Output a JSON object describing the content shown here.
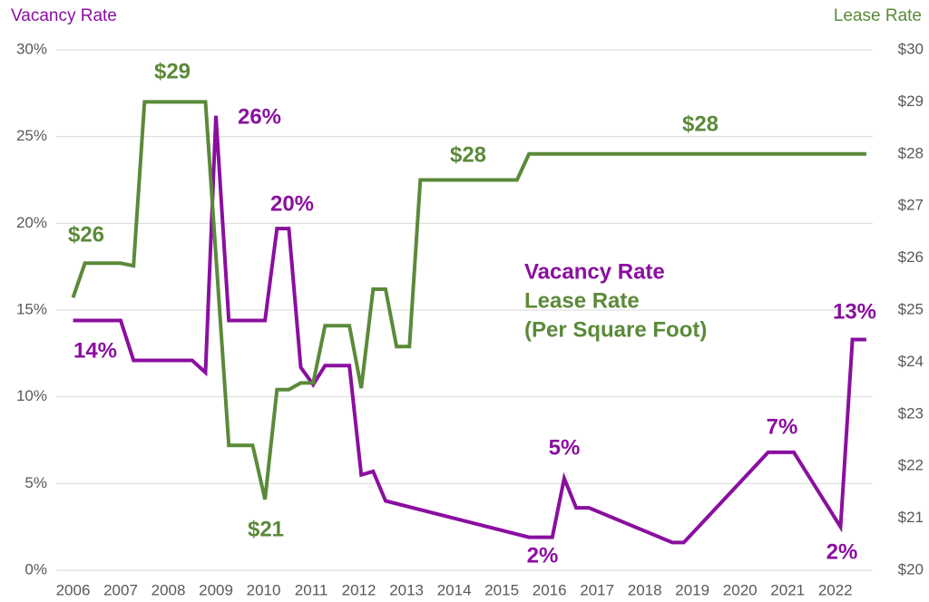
{
  "chart_data": {
    "type": "line",
    "ylabel": "Vacancy Rate",
    "y2label": "Lease Rate",
    "legend_note": "(Per Square Foot)",
    "grid": true,
    "xlim": [
      2005.8,
      2022.9
    ],
    "xticks": [
      2006,
      2007,
      2008,
      2009,
      2010,
      2011,
      2012,
      2013,
      2014,
      2015,
      2016,
      2017,
      2018,
      2019,
      2020,
      2021,
      2022
    ],
    "ylim": [
      0,
      30
    ],
    "yticks": [
      {
        "value": 0,
        "label": "0%"
      },
      {
        "value": 5,
        "label": "5%"
      },
      {
        "value": 10,
        "label": "10%"
      },
      {
        "value": 15,
        "label": "15%"
      },
      {
        "value": 20,
        "label": "20%"
      },
      {
        "value": 25,
        "label": "25%"
      },
      {
        "value": 30,
        "label": "30%"
      }
    ],
    "y2lim": [
      20,
      30
    ],
    "y2ticks": [
      {
        "value": 20,
        "label": "$20"
      },
      {
        "value": 21,
        "label": "$21"
      },
      {
        "value": 22,
        "label": "$22"
      },
      {
        "value": 23,
        "label": "$23"
      },
      {
        "value": 24,
        "label": "$24"
      },
      {
        "value": 25,
        "label": "$25"
      },
      {
        "value": 26,
        "label": "$26"
      },
      {
        "value": 27,
        "label": "$27"
      },
      {
        "value": 28,
        "label": "$28"
      },
      {
        "value": 29,
        "label": "$29"
      },
      {
        "value": 30,
        "label": "$30"
      }
    ],
    "series": [
      {
        "name": "Vacancy Rate",
        "color": "#8a0f9f",
        "axis": "y",
        "x": [
          2006,
          2007,
          2007.27,
          2008.5,
          2008.78,
          2009,
          2009.27,
          2010.03,
          2010.28,
          2010.53,
          2010.78,
          2011.04,
          2011.29,
          2011.8,
          2012.05,
          2012.3,
          2012.56,
          2015.57,
          2016.06,
          2016.31,
          2016.56,
          2016.83,
          2018.58,
          2018.82,
          2020.59,
          2021.13,
          2022.11,
          2022.36,
          2022.65
        ],
        "values": [
          14.4,
          14.4,
          12.1,
          12.1,
          11.4,
          26.2,
          14.4,
          14.4,
          19.7,
          19.7,
          11.7,
          10.7,
          11.8,
          11.8,
          5.5,
          5.7,
          4.0,
          1.9,
          1.9,
          5.3,
          3.6,
          3.6,
          1.6,
          1.6,
          6.8,
          6.8,
          2.5,
          13.3,
          13.3
        ]
      },
      {
        "name": "Lease Rate",
        "color": "#5b8a3a",
        "axis": "y2",
        "x": [
          2006,
          2006.25,
          2007,
          2007.27,
          2007.5,
          2008.78,
          2009.27,
          2009.77,
          2010.03,
          2010.28,
          2010.53,
          2010.78,
          2011.04,
          2011.29,
          2011.8,
          2012.05,
          2012.3,
          2012.56,
          2012.79,
          2013.06,
          2013.29,
          2015.32,
          2015.57,
          2022.65
        ],
        "values": [
          25.24,
          25.9,
          25.9,
          25.85,
          29.0,
          29.0,
          22.4,
          22.4,
          21.36,
          23.47,
          23.47,
          23.6,
          23.6,
          24.7,
          24.7,
          23.5,
          25.4,
          25.4,
          24.3,
          24.3,
          27.5,
          27.5,
          28.0,
          28.0
        ]
      }
    ],
    "annotations": [
      {
        "text": "$29",
        "color": "#5b8a3a"
      },
      {
        "text": "26%",
        "color": "#8a0f9f"
      },
      {
        "text": "20%",
        "color": "#8a0f9f"
      },
      {
        "text": "$26",
        "color": "#5b8a3a"
      },
      {
        "text": "14%",
        "color": "#8a0f9f"
      },
      {
        "text": "$21",
        "color": "#5b8a3a"
      },
      {
        "text": "$28",
        "color": "#5b8a3a"
      },
      {
        "text": "$28",
        "color": "#5b8a3a"
      },
      {
        "text": "5%",
        "color": "#8a0f9f"
      },
      {
        "text": "7%",
        "color": "#8a0f9f"
      },
      {
        "text": "2%",
        "color": "#8a0f9f"
      },
      {
        "text": "2%",
        "color": "#8a0f9f"
      },
      {
        "text": "13%",
        "color": "#8a0f9f"
      }
    ]
  }
}
